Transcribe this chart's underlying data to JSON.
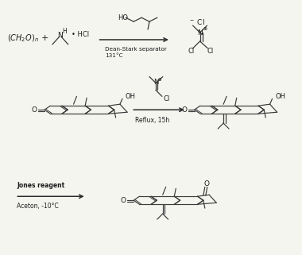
{
  "background_color": "#f5f5f0",
  "line_color": "#3a3a3a",
  "text_color": "#1a1a1a",
  "arrow_color": "#2a2a2a",
  "figsize": [
    3.8,
    3.21
  ],
  "dpi": 100,
  "step1": {
    "reactant1": "$(CH_2O)_n$",
    "plus": "+",
    "amine_label": "N",
    "amine_h": "H",
    "hcl": "HCl",
    "alcohol_ho": "HO",
    "condition1": "Dean-Stark separator",
    "condition2": "131°C",
    "product_minus_cl": "$^-$ Cl",
    "product_n": "N",
    "product_cl1": "Cl",
    "product_cl2": "Cl"
  },
  "step2": {
    "reagent_n": "N",
    "reagent_cl": "Cl",
    "condition1": "Reflux, 15h",
    "product_oh": "OH",
    "product_o": "O"
  },
  "step3": {
    "condition1": "Jones reagent",
    "condition2": "Aceton, -10°C",
    "product_o1": "O",
    "product_o2": "O"
  }
}
